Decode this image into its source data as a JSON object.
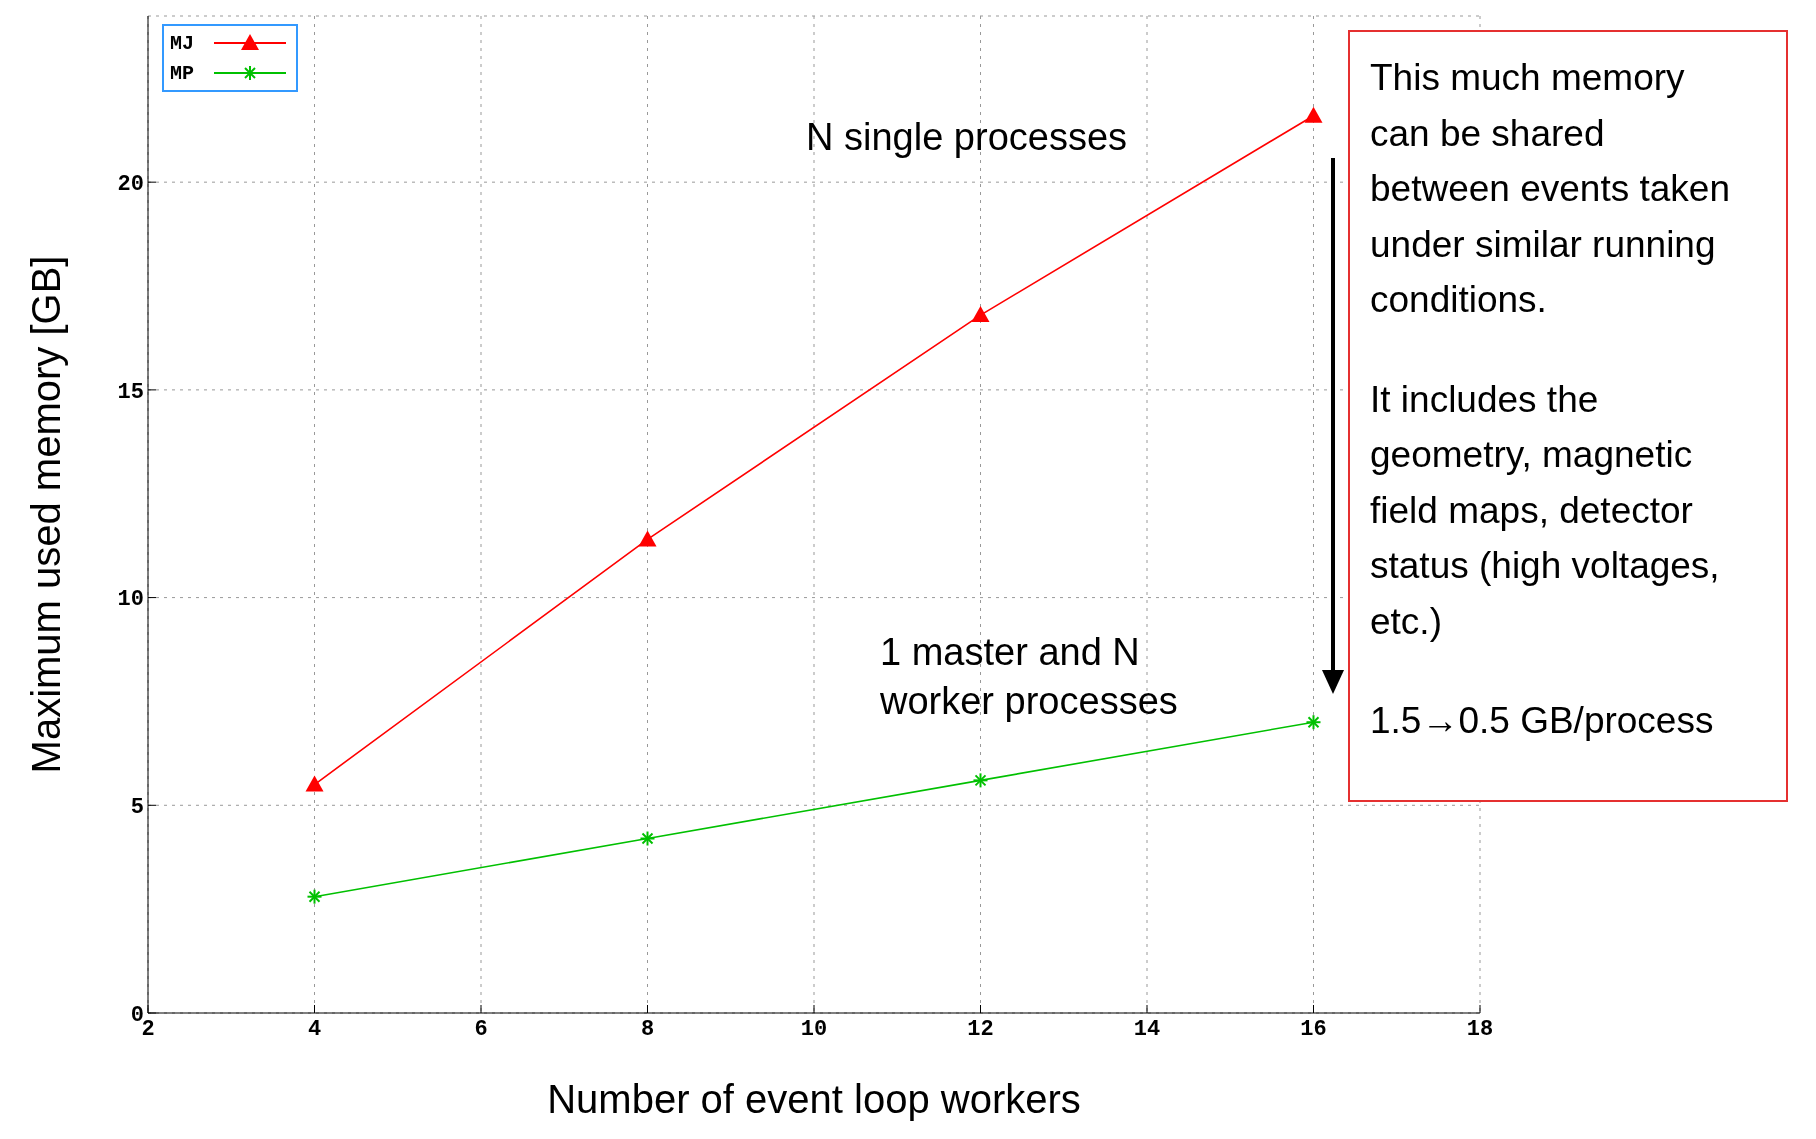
{
  "chart_data": {
    "type": "line",
    "xlabel": "Number of event loop workers",
    "ylabel": "Maximum used memory [GB]",
    "x": [
      4,
      8,
      12,
      16
    ],
    "series": [
      {
        "name": "MJ",
        "color": "#ff0000",
        "marker": "triangle",
        "values": [
          5.5,
          11.4,
          16.8,
          21.6
        ]
      },
      {
        "name": "MP",
        "color": "#00c000",
        "marker": "cross",
        "values": [
          2.8,
          4.2,
          5.6,
          7.0
        ]
      }
    ],
    "xlim": [
      2,
      18
    ],
    "xticks": [
      2,
      4,
      6,
      8,
      10,
      12,
      14,
      16,
      18
    ],
    "ylim": [
      0,
      24
    ],
    "yticks": [
      0,
      5,
      10,
      15,
      20
    ],
    "grid": true,
    "legend": "top left",
    "line_style": "solid",
    "annotations": [
      "N single processes",
      "1 master and N worker processes",
      "This much memory can be shared between events taken under similar running conditions.",
      "It includes the geometry, magnetic field maps, detector status (high voltages, etc.)",
      "1.5→0.5 GB/process"
    ]
  }
}
